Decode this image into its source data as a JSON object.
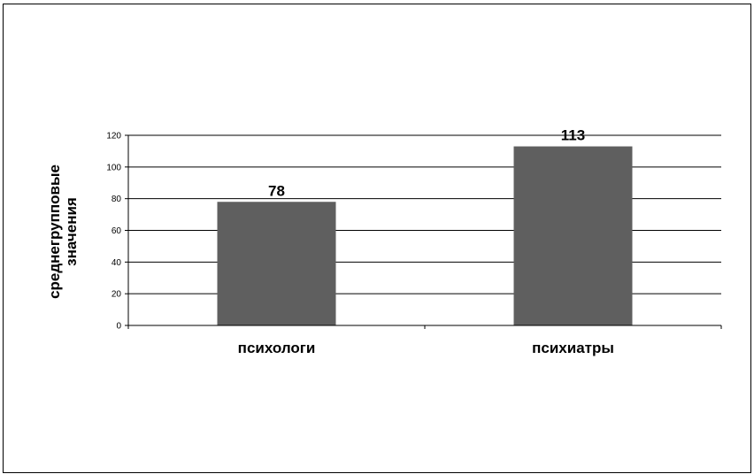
{
  "chart_data": {
    "type": "bar",
    "categories": [
      "психологи",
      "психиатры"
    ],
    "values": [
      78,
      113
    ],
    "data_labels": [
      "78",
      "113"
    ],
    "title": "",
    "xlabel": "",
    "ylabel_lines": [
      "среднегрупповые",
      "значения"
    ],
    "ylim": [
      0,
      120
    ],
    "yticks": [
      0,
      20,
      40,
      60,
      80,
      100,
      120
    ],
    "ytick_labels": [
      "0",
      "20",
      "40",
      "60",
      "80",
      "100",
      "120"
    ],
    "grid": true,
    "legend": "none",
    "bar_color": "#5f5f5f",
    "grid_color": "#000000"
  }
}
